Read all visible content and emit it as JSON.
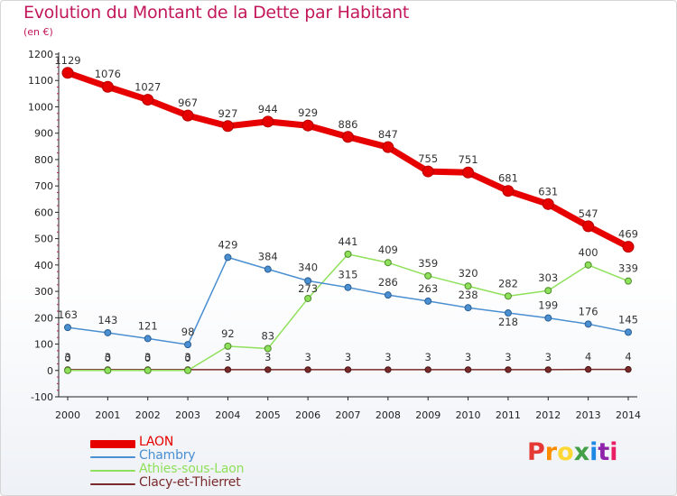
{
  "header": {
    "title": "Evolution du Montant de la Dette par Habitant",
    "subtitle": "(en €)"
  },
  "logo": {
    "text": "Proxiti",
    "colors": [
      "#e53935",
      "#fb8c00",
      "#fdd835",
      "#43a047",
      "#1e88e5",
      "#8e24aa",
      "#e91e63"
    ]
  },
  "chart_data": {
    "type": "line",
    "title": "Evolution du Montant de la Dette par Habitant",
    "ylabel": "(en €)",
    "xlabel": "",
    "x": [
      "2000",
      "2001",
      "2002",
      "2003",
      "2004",
      "2005",
      "2006",
      "2007",
      "2008",
      "2009",
      "2010",
      "2011",
      "2012",
      "2013",
      "2014"
    ],
    "ylim": [
      -100,
      1200
    ],
    "yticks": [
      -100,
      0,
      100,
      200,
      300,
      400,
      500,
      600,
      700,
      800,
      900,
      1000,
      1100,
      1200
    ],
    "grid": false,
    "legend_position": "bottom-left",
    "series": [
      {
        "name": "LAON",
        "color": "#e60000",
        "values": [
          1129,
          1076,
          1027,
          967,
          927,
          944,
          929,
          886,
          847,
          755,
          751,
          681,
          631,
          547,
          469
        ],
        "labels": [
          "1129",
          "1076",
          "1027",
          "967",
          "927",
          "944",
          "929",
          "886",
          "847",
          "755",
          "751",
          "681",
          "631",
          "547",
          "469"
        ]
      },
      {
        "name": "Chambry",
        "color": "#4a8fd1",
        "values": [
          163,
          143,
          121,
          98,
          429,
          384,
          340,
          315,
          286,
          263,
          238,
          218,
          199,
          176,
          145
        ],
        "labels": [
          "163",
          "143",
          "121",
          "98",
          "429",
          "384",
          "340",
          "315",
          "286",
          "263",
          "238",
          "218",
          "199",
          "176",
          "145"
        ]
      },
      {
        "name": "Athies-sous-Laon",
        "color": "#8fe05a",
        "values": [
          0,
          0,
          0,
          0,
          92,
          83,
          273,
          441,
          409,
          359,
          320,
          282,
          303,
          400,
          339
        ],
        "labels": [
          "0",
          "0",
          "0",
          "0",
          "92",
          "83",
          "273",
          "441",
          "409",
          "359",
          "320",
          "282",
          "303",
          "400",
          "339"
        ]
      },
      {
        "name": "Clacy-et-Thierret",
        "color": "#7a2a2a",
        "values": [
          3,
          3,
          3,
          3,
          3,
          3,
          3,
          3,
          3,
          3,
          3,
          3,
          3,
          4,
          4
        ],
        "labels": [
          "3",
          "3",
          "3",
          "3",
          "3",
          "3",
          "3",
          "3",
          "3",
          "3",
          "3",
          "3",
          "3",
          "4",
          "4"
        ]
      }
    ]
  }
}
